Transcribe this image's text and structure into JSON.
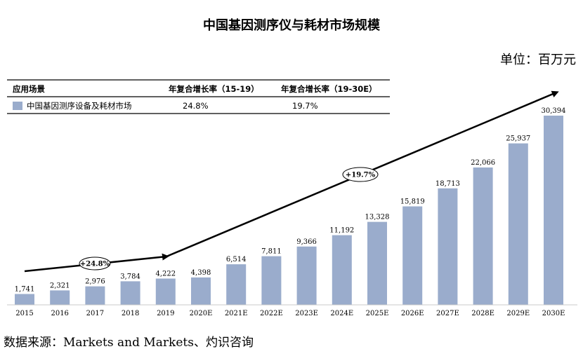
{
  "chart_data": {
    "type": "bar",
    "title": "中国基因测序仪与耗材市场规模",
    "unit_label": "单位：百万元",
    "source": "数据来源：Markets and Markets、灼识咨询",
    "categories": [
      "2015",
      "2016",
      "2017",
      "2018",
      "2019",
      "2020E",
      "2021E",
      "2022E",
      "2023E",
      "2024E",
      "2025E",
      "2026E",
      "2027E",
      "2028E",
      "2029E",
      "2030E"
    ],
    "series": [
      {
        "name": "中国基因测序设备及耗材市场",
        "values": [
          1741,
          2321,
          2976,
          3784,
          4222,
          4398,
          6514,
          7811,
          9366,
          11192,
          13328,
          15819,
          18713,
          22066,
          25937,
          30394
        ],
        "labels": [
          "1,741",
          "2,321",
          "2,976",
          "3,784",
          "4,222",
          "4,398",
          "6,514",
          "7,811",
          "9,366",
          "11,192",
          "13,328",
          "15,819",
          "18,713",
          "22,066",
          "25,937",
          "30,394"
        ],
        "color": "#9aaccc"
      }
    ],
    "ylim": [
      0,
      32000
    ],
    "table": {
      "headers": [
        "应用场景",
        "年复合增长率（15-19）",
        "年复合增长率（19-30E）"
      ],
      "rows": [
        {
          "name": "中国基因测序设备及耗材市场",
          "cagr_15_19": "24.8%",
          "cagr_19_30": "19.7%"
        }
      ]
    },
    "annotations": [
      {
        "label": "+24.8%",
        "from": "2015",
        "to": "2019"
      },
      {
        "label": "+19.7%",
        "from": "2019",
        "to": "2030E"
      }
    ]
  }
}
